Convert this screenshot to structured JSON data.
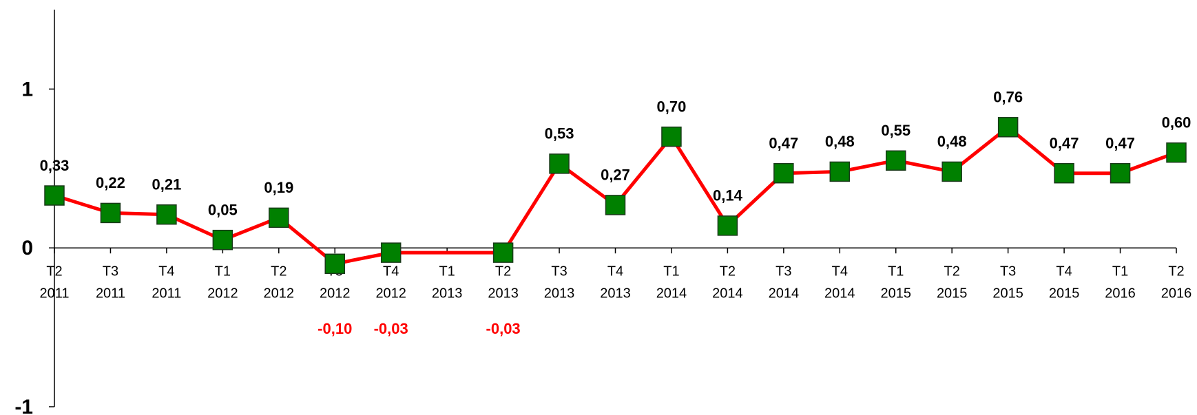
{
  "chart_data": {
    "type": "line",
    "categories": [
      [
        "T2",
        "2011"
      ],
      [
        "T3",
        "2011"
      ],
      [
        "T4",
        "2011"
      ],
      [
        "T1",
        "2012"
      ],
      [
        "T2",
        "2012"
      ],
      [
        "T3",
        "2012"
      ],
      [
        "T4",
        "2012"
      ],
      [
        "T1",
        "2013"
      ],
      [
        "T2",
        "2013"
      ],
      [
        "T3",
        "2013"
      ],
      [
        "T4",
        "2013"
      ],
      [
        "T1",
        "2014"
      ],
      [
        "T2",
        "2014"
      ],
      [
        "T3",
        "2014"
      ],
      [
        "T4",
        "2014"
      ],
      [
        "T1",
        "2015"
      ],
      [
        "T2",
        "2015"
      ],
      [
        "T3",
        "2015"
      ],
      [
        "T4",
        "2015"
      ],
      [
        "T1",
        "2016"
      ],
      [
        "T2",
        "2016"
      ]
    ],
    "series": [
      {
        "color": "#ff0000",
        "marker_color": "#008000",
        "values": [
          0.33,
          0.22,
          0.21,
          0.05,
          0.19,
          -0.1,
          -0.03,
          null,
          -0.03,
          0.53,
          0.27,
          0.7,
          0.14,
          0.47,
          0.48,
          0.55,
          0.48,
          0.76,
          0.47,
          0.47,
          0.6
        ],
        "value_labels": [
          "0,33",
          "0,22",
          "0,21",
          "0,05",
          "0,19",
          "-0,10",
          "-0,03",
          null,
          "-0,03",
          "0,53",
          "0,27",
          "0,70",
          "0,14",
          "0,47",
          "0,48",
          "0,55",
          "0,48",
          "0,76",
          "0,47",
          "0,47",
          "0,60"
        ],
        "negative_label_color": "#ff0000"
      }
    ],
    "ylim": [
      -1,
      1.5
    ],
    "yticks": [
      -1,
      0,
      1
    ],
    "grid": false
  }
}
